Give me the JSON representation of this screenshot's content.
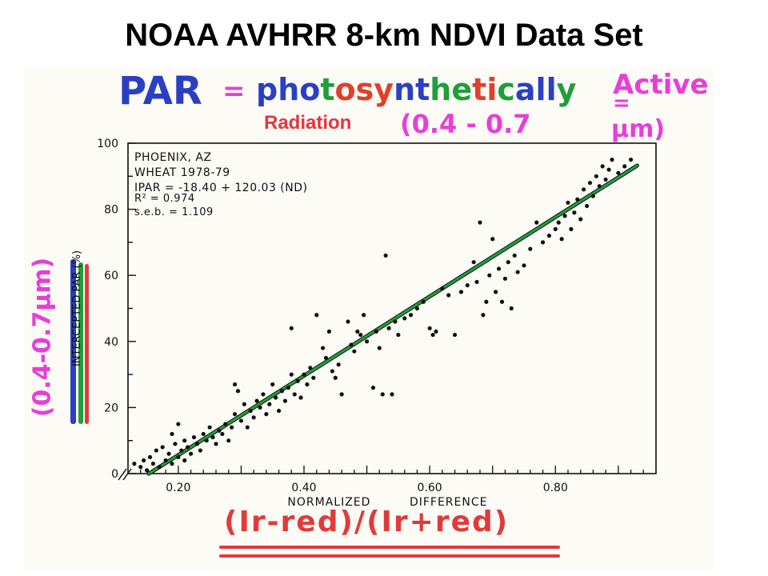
{
  "slide": {
    "title": "NOAA AVHRR 8-km NDVI Data Set"
  },
  "annotations": {
    "par": "PAR",
    "eq1": "=",
    "photo_chars": [
      {
        "ch": "p",
        "color": "#2b3fc4"
      },
      {
        "ch": "h",
        "color": "#2b3fc4"
      },
      {
        "ch": "o",
        "color": "#2b3fc4"
      },
      {
        "ch": "t",
        "color": "#1f9e3a"
      },
      {
        "ch": "o",
        "color": "#e0402a"
      },
      {
        "ch": "s",
        "color": "#e0402a"
      },
      {
        "ch": "y",
        "color": "#e0402a"
      },
      {
        "ch": "n",
        "color": "#2b3fc4"
      },
      {
        "ch": "t",
        "color": "#2b3fc4"
      },
      {
        "ch": "h",
        "color": "#1f9e3a"
      },
      {
        "ch": "e",
        "color": "#1f9e3a"
      },
      {
        "ch": "t",
        "color": "#e0402a"
      },
      {
        "ch": "i",
        "color": "#e0402a"
      },
      {
        "ch": "c",
        "color": "#1f9e3a"
      },
      {
        "ch": "a",
        "color": "#2b3fc4"
      },
      {
        "ch": "l",
        "color": "#2b3fc4"
      },
      {
        "ch": "l",
        "color": "#2b3fc4"
      },
      {
        "ch": "y",
        "color": "#1f9e3a"
      }
    ],
    "active": "Active",
    "eq2": "=",
    "radiation": "Radiation",
    "band": "(0.4 - 0.7",
    "um": "μm)",
    "y_band": "(0.4-0.7μm)",
    "formula": "(Ir-red)/(Ir+red)",
    "colors": {
      "blue": "#2b3fc4",
      "magenta": "#e83ed8",
      "red": "#e23a3a",
      "green": "#1f9e3a",
      "pink": "#e8333f"
    }
  },
  "chart_data": {
    "type": "scatter",
    "title": "",
    "annotation_lines": [
      "PHOENIX, AZ",
      "WHEAT 1978-79",
      "IPAR = -18.40 + 120.03 (ND)",
      "R² = 0.974",
      "s.e.b. = 1.109"
    ],
    "xlabel_lines": [
      "NORMALIZED",
      "DIFFERENCE"
    ],
    "ylabel": "INTERCEPTED PAR (%)",
    "xlim": [
      0.12,
      0.96
    ],
    "ylim": [
      0,
      100
    ],
    "x_ticks": [
      0.2,
      0.4,
      0.6,
      0.8
    ],
    "x_tick_labels": [
      "0.20",
      "0.40",
      "0.60",
      "0.80"
    ],
    "y_ticks": [
      0,
      20,
      40,
      60,
      80,
      100
    ],
    "y_tick_labels": [
      "0",
      "20",
      "40",
      "60",
      "80",
      "100"
    ],
    "grid": false,
    "fit_line": {
      "slope": 120.03,
      "intercept": -18.4,
      "x_range": [
        0.153,
        0.93
      ],
      "color": "#1f9e3a"
    },
    "series": [
      {
        "points": [
          [
            0.13,
            3
          ],
          [
            0.14,
            2
          ],
          [
            0.145,
            4
          ],
          [
            0.15,
            1
          ],
          [
            0.155,
            5
          ],
          [
            0.16,
            3
          ],
          [
            0.165,
            7
          ],
          [
            0.17,
            2
          ],
          [
            0.175,
            8
          ],
          [
            0.18,
            4
          ],
          [
            0.185,
            6
          ],
          [
            0.19,
            12
          ],
          [
            0.19,
            3
          ],
          [
            0.195,
            9
          ],
          [
            0.2,
            15
          ],
          [
            0.2,
            5
          ],
          [
            0.205,
            7
          ],
          [
            0.21,
            10
          ],
          [
            0.21,
            4
          ],
          [
            0.215,
            8
          ],
          [
            0.22,
            6
          ],
          [
            0.225,
            11
          ],
          [
            0.23,
            9
          ],
          [
            0.235,
            7
          ],
          [
            0.24,
            12
          ],
          [
            0.245,
            10
          ],
          [
            0.25,
            14
          ],
          [
            0.255,
            11
          ],
          [
            0.26,
            9
          ],
          [
            0.265,
            13
          ],
          [
            0.27,
            12
          ],
          [
            0.275,
            15
          ],
          [
            0.28,
            10
          ],
          [
            0.285,
            14
          ],
          [
            0.29,
            27
          ],
          [
            0.29,
            18
          ],
          [
            0.295,
            25
          ],
          [
            0.3,
            16
          ],
          [
            0.305,
            21
          ],
          [
            0.31,
            14
          ],
          [
            0.315,
            19
          ],
          [
            0.32,
            17
          ],
          [
            0.325,
            22
          ],
          [
            0.33,
            20
          ],
          [
            0.335,
            24
          ],
          [
            0.34,
            18
          ],
          [
            0.345,
            21
          ],
          [
            0.35,
            27
          ],
          [
            0.355,
            23
          ],
          [
            0.36,
            19
          ],
          [
            0.365,
            25
          ],
          [
            0.37,
            22
          ],
          [
            0.375,
            26
          ],
          [
            0.38,
            44
          ],
          [
            0.38,
            30
          ],
          [
            0.385,
            24
          ],
          [
            0.39,
            28
          ],
          [
            0.395,
            23
          ],
          [
            0.4,
            30
          ],
          [
            0.405,
            27
          ],
          [
            0.41,
            32
          ],
          [
            0.415,
            29
          ],
          [
            0.42,
            48
          ],
          [
            0.43,
            38
          ],
          [
            0.435,
            35
          ],
          [
            0.44,
            43
          ],
          [
            0.445,
            31
          ],
          [
            0.45,
            29
          ],
          [
            0.455,
            33
          ],
          [
            0.46,
            24
          ],
          [
            0.47,
            46
          ],
          [
            0.475,
            39
          ],
          [
            0.48,
            37
          ],
          [
            0.485,
            43
          ],
          [
            0.49,
            42
          ],
          [
            0.495,
            48
          ],
          [
            0.5,
            40
          ],
          [
            0.51,
            26
          ],
          [
            0.515,
            43
          ],
          [
            0.52,
            38
          ],
          [
            0.525,
            24
          ],
          [
            0.53,
            66
          ],
          [
            0.535,
            44
          ],
          [
            0.54,
            24
          ],
          [
            0.545,
            46
          ],
          [
            0.55,
            42
          ],
          [
            0.56,
            47
          ],
          [
            0.57,
            48
          ],
          [
            0.58,
            50
          ],
          [
            0.59,
            52
          ],
          [
            0.6,
            44
          ],
          [
            0.605,
            42
          ],
          [
            0.61,
            43
          ],
          [
            0.62,
            56
          ],
          [
            0.63,
            54
          ],
          [
            0.64,
            42
          ],
          [
            0.65,
            55
          ],
          [
            0.66,
            57
          ],
          [
            0.67,
            64
          ],
          [
            0.675,
            58
          ],
          [
            0.68,
            76
          ],
          [
            0.685,
            48
          ],
          [
            0.69,
            52
          ],
          [
            0.695,
            60
          ],
          [
            0.7,
            71
          ],
          [
            0.705,
            55
          ],
          [
            0.71,
            62
          ],
          [
            0.715,
            52
          ],
          [
            0.72,
            59
          ],
          [
            0.725,
            64
          ],
          [
            0.73,
            50
          ],
          [
            0.735,
            66
          ],
          [
            0.74,
            61
          ],
          [
            0.75,
            63
          ],
          [
            0.76,
            68
          ],
          [
            0.77,
            76
          ],
          [
            0.78,
            70
          ],
          [
            0.79,
            72
          ],
          [
            0.8,
            74
          ],
          [
            0.805,
            76
          ],
          [
            0.81,
            71
          ],
          [
            0.815,
            78
          ],
          [
            0.82,
            82
          ],
          [
            0.825,
            74
          ],
          [
            0.83,
            79
          ],
          [
            0.835,
            83
          ],
          [
            0.84,
            77
          ],
          [
            0.845,
            86
          ],
          [
            0.85,
            81
          ],
          [
            0.855,
            88
          ],
          [
            0.86,
            84
          ],
          [
            0.865,
            90
          ],
          [
            0.87,
            87
          ],
          [
            0.875,
            93
          ],
          [
            0.88,
            89
          ],
          [
            0.885,
            92
          ],
          [
            0.89,
            95
          ],
          [
            0.9,
            91
          ],
          [
            0.91,
            93
          ],
          [
            0.92,
            95
          ]
        ]
      }
    ]
  }
}
